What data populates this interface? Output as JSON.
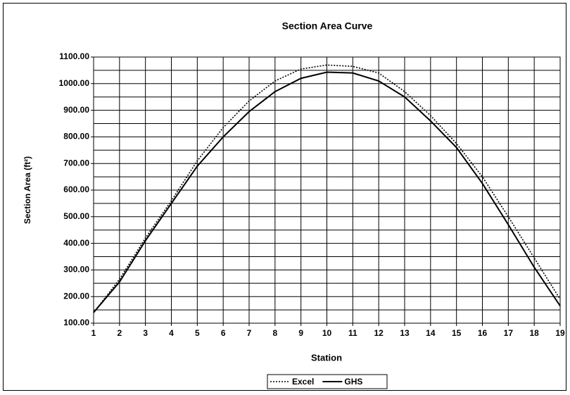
{
  "chart_data": {
    "type": "line",
    "title": "Section Area Curve",
    "x_label": "Station",
    "y_label": "Section Area (ft²)",
    "x": [
      1,
      2,
      3,
      4,
      5,
      6,
      7,
      8,
      9,
      10,
      11,
      12,
      13,
      14,
      15,
      16,
      17,
      18,
      19
    ],
    "series": [
      {
        "name": "Excel",
        "color": "#000000",
        "dash": "dotted",
        "values": [
          140,
          265,
          420,
          560,
          710,
          835,
          935,
          1010,
          1055,
          1070,
          1065,
          1040,
          970,
          880,
          775,
          650,
          500,
          345,
          190
        ]
      },
      {
        "name": "GHS",
        "color": "#000000",
        "dash": "solid",
        "values": [
          140,
          255,
          410,
          550,
          690,
          800,
          895,
          970,
          1020,
          1043,
          1040,
          1010,
          950,
          860,
          760,
          625,
          470,
          310,
          165
        ]
      }
    ],
    "xlim": [
      1,
      19
    ],
    "xticks": [
      1,
      2,
      3,
      4,
      5,
      6,
      7,
      8,
      9,
      10,
      11,
      12,
      13,
      14,
      15,
      16,
      17,
      18,
      19
    ],
    "ylim": [
      100,
      1100
    ],
    "yticks": [
      {
        "value": 100,
        "label": "100.00"
      },
      {
        "value": 200,
        "label": "200.00"
      },
      {
        "value": 300,
        "label": "300.00"
      },
      {
        "value": 400,
        "label": "400.00"
      },
      {
        "value": 500,
        "label": "500.00"
      },
      {
        "value": 600,
        "label": "600.00"
      },
      {
        "value": 700,
        "label": "700.00"
      },
      {
        "value": 800,
        "label": "800.00"
      },
      {
        "value": 900,
        "label": "900.00"
      },
      {
        "value": 1000,
        "label": "1000.00"
      },
      {
        "value": 1100,
        "label": "1100.00"
      }
    ],
    "ygrid_ticks": [
      150,
      250,
      350,
      450,
      550,
      650,
      750,
      850,
      950,
      1050
    ],
    "grid": true,
    "legend": "bottom"
  }
}
